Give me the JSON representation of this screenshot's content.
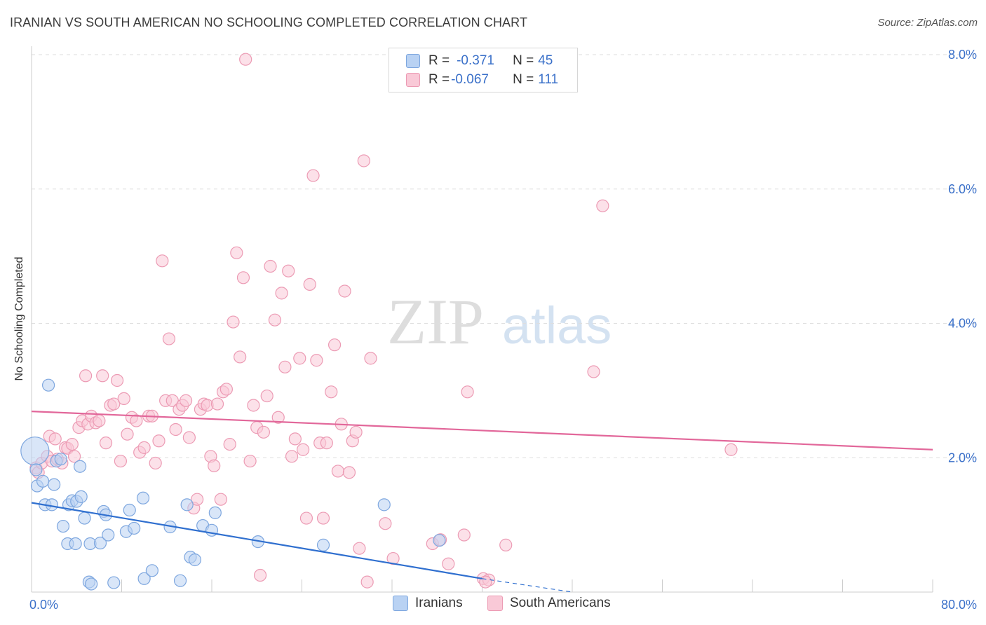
{
  "title": "IRANIAN VS SOUTH AMERICAN NO SCHOOLING COMPLETED CORRELATION CHART",
  "source": "Source: ZipAtlas.com",
  "watermark": {
    "zip": "ZIP",
    "atlas": "atlas"
  },
  "legend_top": [
    {
      "r_label": "R = ",
      "r_value": "-0.371",
      "n_label": "N = ",
      "n_value": "45"
    },
    {
      "r_label": "R = ",
      "r_value": "-0.067",
      "n_label": "N = ",
      "n_value": "111"
    }
  ],
  "legend_bottom": [
    "Iranians",
    "South Americans"
  ],
  "colors": {
    "blue_fill": "#b9d2f3",
    "blue_stroke": "#7ea7df",
    "blue_line": "#2f6fcf",
    "pink_fill": "#f9c9d7",
    "pink_stroke": "#ec9bb4",
    "pink_line": "#e2679a",
    "tick_text": "#3a70c9",
    "grid": "#dedede"
  },
  "chart_data": {
    "type": "scatter",
    "title": "IRANIAN VS SOUTH AMERICAN NO SCHOOLING COMPLETED CORRELATION CHART",
    "xlabel": "",
    "ylabel": "No Schooling Completed",
    "xlim": [
      0,
      80
    ],
    "ylim": [
      0,
      8.0
    ],
    "x_tick_labels": [
      "0.0%",
      "80.0%"
    ],
    "y_ticks": [
      2.0,
      4.0,
      6.0,
      8.0
    ],
    "y_tick_labels": [
      "2.0%",
      "4.0%",
      "6.0%",
      "8.0%"
    ],
    "grid": true,
    "series": [
      {
        "name": "Iranians",
        "r": -0.371,
        "n": 45,
        "trend": {
          "x0": 0,
          "y0": 1.33,
          "x1": 40,
          "y1": 0.2,
          "dashed_to_x": 48,
          "dashed_to_y": 0.0
        },
        "points": [
          [
            0.3,
            2.1
          ],
          [
            0.4,
            1.82
          ],
          [
            0.5,
            1.58
          ],
          [
            1.0,
            1.65
          ],
          [
            1.5,
            3.08
          ],
          [
            1.2,
            1.3
          ],
          [
            1.8,
            1.3
          ],
          [
            2.0,
            1.6
          ],
          [
            2.2,
            1.95
          ],
          [
            2.6,
            1.98
          ],
          [
            2.8,
            0.98
          ],
          [
            3.2,
            0.72
          ],
          [
            3.3,
            1.3
          ],
          [
            3.6,
            1.36
          ],
          [
            3.9,
            0.72
          ],
          [
            4.0,
            1.35
          ],
          [
            4.3,
            1.87
          ],
          [
            4.4,
            1.42
          ],
          [
            4.7,
            1.1
          ],
          [
            5.2,
            0.72
          ],
          [
            5.1,
            0.15
          ],
          [
            5.3,
            0.12
          ],
          [
            6.1,
            0.73
          ],
          [
            6.4,
            1.2
          ],
          [
            6.6,
            1.15
          ],
          [
            6.8,
            0.85
          ],
          [
            7.3,
            0.14
          ],
          [
            8.4,
            0.9
          ],
          [
            8.7,
            1.22
          ],
          [
            9.1,
            0.95
          ],
          [
            9.9,
            1.4
          ],
          [
            10.0,
            0.2
          ],
          [
            10.7,
            0.32
          ],
          [
            12.3,
            0.97
          ],
          [
            13.2,
            0.17
          ],
          [
            13.8,
            1.3
          ],
          [
            14.1,
            0.52
          ],
          [
            14.5,
            0.48
          ],
          [
            15.2,
            0.99
          ],
          [
            16.0,
            0.92
          ],
          [
            16.3,
            1.18
          ],
          [
            20.1,
            0.75
          ],
          [
            25.9,
            0.7
          ],
          [
            31.3,
            1.3
          ],
          [
            36.2,
            0.77
          ]
        ]
      },
      {
        "name": "South Americans",
        "r": -0.067,
        "n": 111,
        "trend": {
          "x0": 0,
          "y0": 2.69,
          "x1": 80,
          "y1": 2.12
        },
        "points": [
          [
            0.4,
            1.85
          ],
          [
            0.6,
            1.78
          ],
          [
            0.9,
            1.92
          ],
          [
            1.4,
            2.02
          ],
          [
            1.6,
            2.32
          ],
          [
            1.8,
            1.95
          ],
          [
            2.1,
            2.28
          ],
          [
            2.3,
            1.98
          ],
          [
            2.7,
            1.92
          ],
          [
            3.0,
            2.15
          ],
          [
            3.2,
            2.14
          ],
          [
            3.6,
            2.2
          ],
          [
            3.8,
            2.02
          ],
          [
            4.2,
            2.45
          ],
          [
            4.5,
            2.55
          ],
          [
            4.8,
            3.22
          ],
          [
            5.0,
            2.5
          ],
          [
            5.3,
            2.62
          ],
          [
            5.7,
            2.52
          ],
          [
            6.0,
            2.55
          ],
          [
            6.3,
            3.22
          ],
          [
            6.6,
            2.22
          ],
          [
            7.0,
            2.78
          ],
          [
            7.3,
            2.8
          ],
          [
            7.6,
            3.15
          ],
          [
            7.9,
            1.95
          ],
          [
            8.2,
            2.88
          ],
          [
            8.5,
            2.35
          ],
          [
            8.9,
            2.6
          ],
          [
            9.3,
            2.55
          ],
          [
            9.6,
            2.08
          ],
          [
            10.0,
            2.15
          ],
          [
            10.4,
            2.62
          ],
          [
            10.7,
            2.62
          ],
          [
            11.0,
            1.92
          ],
          [
            11.3,
            2.25
          ],
          [
            11.6,
            4.93
          ],
          [
            11.9,
            2.85
          ],
          [
            12.2,
            3.77
          ],
          [
            12.5,
            2.85
          ],
          [
            12.8,
            2.42
          ],
          [
            13.1,
            2.72
          ],
          [
            13.4,
            2.78
          ],
          [
            13.7,
            2.85
          ],
          [
            14.0,
            2.3
          ],
          [
            14.4,
            1.25
          ],
          [
            14.7,
            1.38
          ],
          [
            15.0,
            2.72
          ],
          [
            15.3,
            2.8
          ],
          [
            15.6,
            2.78
          ],
          [
            15.9,
            2.02
          ],
          [
            16.2,
            1.88
          ],
          [
            16.5,
            2.8
          ],
          [
            16.8,
            1.38
          ],
          [
            17.0,
            2.98
          ],
          [
            17.3,
            3.02
          ],
          [
            17.6,
            2.2
          ],
          [
            17.9,
            4.02
          ],
          [
            18.2,
            5.05
          ],
          [
            18.5,
            3.5
          ],
          [
            18.8,
            4.68
          ],
          [
            19.0,
            7.93
          ],
          [
            19.4,
            1.95
          ],
          [
            19.7,
            2.78
          ],
          [
            20.0,
            2.45
          ],
          [
            20.3,
            0.25
          ],
          [
            20.6,
            2.38
          ],
          [
            20.9,
            2.92
          ],
          [
            21.2,
            4.85
          ],
          [
            21.6,
            4.05
          ],
          [
            21.9,
            2.6
          ],
          [
            22.2,
            4.45
          ],
          [
            22.5,
            3.35
          ],
          [
            22.8,
            4.78
          ],
          [
            23.1,
            2.02
          ],
          [
            23.4,
            2.28
          ],
          [
            23.8,
            3.48
          ],
          [
            24.1,
            2.12
          ],
          [
            24.4,
            1.1
          ],
          [
            24.7,
            4.58
          ],
          [
            25.0,
            6.2
          ],
          [
            25.3,
            3.45
          ],
          [
            25.6,
            2.22
          ],
          [
            25.9,
            1.1
          ],
          [
            26.2,
            2.22
          ],
          [
            26.6,
            2.98
          ],
          [
            26.9,
            3.68
          ],
          [
            27.2,
            1.8
          ],
          [
            27.5,
            2.5
          ],
          [
            27.8,
            4.48
          ],
          [
            28.2,
            1.78
          ],
          [
            28.5,
            2.25
          ],
          [
            28.8,
            2.38
          ],
          [
            29.1,
            0.65
          ],
          [
            29.5,
            6.42
          ],
          [
            29.8,
            0.15
          ],
          [
            30.1,
            3.48
          ],
          [
            31.4,
            1.02
          ],
          [
            32.1,
            0.5
          ],
          [
            35.6,
            0.72
          ],
          [
            36.3,
            0.78
          ],
          [
            37.0,
            0.42
          ],
          [
            38.4,
            0.85
          ],
          [
            38.7,
            2.98
          ],
          [
            40.1,
            0.2
          ],
          [
            40.6,
            0.18
          ],
          [
            42.1,
            0.7
          ],
          [
            49.9,
            3.28
          ],
          [
            50.7,
            5.75
          ],
          [
            62.1,
            2.12
          ],
          [
            40.3,
            0.15
          ]
        ]
      }
    ]
  }
}
